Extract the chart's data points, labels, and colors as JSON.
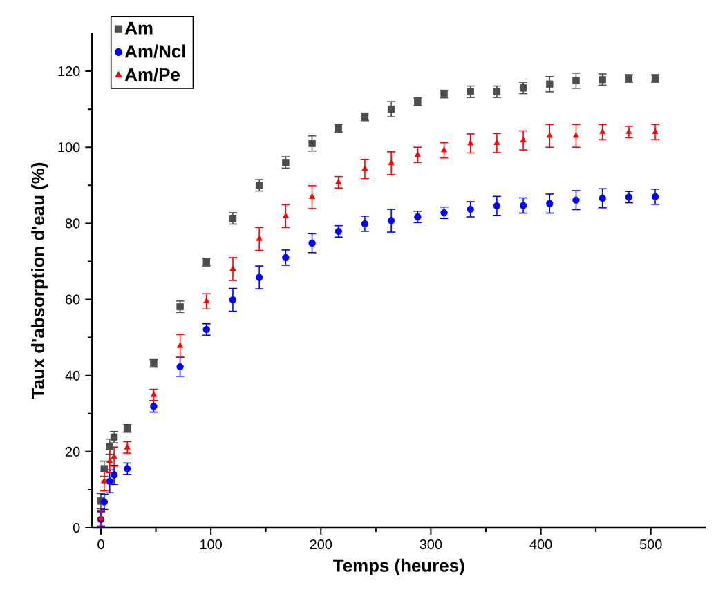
{
  "chart_data": {
    "type": "scatter",
    "xlabel": "Temps (heures)",
    "ylabel": "Taux d'absorption d'eau (%)",
    "xlim": [
      -8,
      550
    ],
    "ylim": [
      0,
      130
    ],
    "xticks": [
      0,
      100,
      200,
      300,
      400,
      500
    ],
    "yticks": [
      0,
      20,
      40,
      60,
      80,
      100,
      120
    ],
    "legend": "top left",
    "grid": false,
    "x": [
      0,
      3,
      8,
      12,
      24,
      48,
      72,
      96,
      120,
      144,
      168,
      192,
      216,
      240,
      264,
      288,
      312,
      336,
      360,
      384,
      408,
      432,
      456,
      480,
      504
    ],
    "series": [
      {
        "name": "Am",
        "color": "#4d4d4d",
        "marker": "square",
        "values": [
          7.0,
          15.5,
          21.3,
          23.8,
          26.1,
          43.2,
          58.1,
          69.8,
          81.3,
          90,
          96,
          101,
          105,
          108,
          110,
          112,
          114,
          114.6,
          114.6,
          115.6,
          116.6,
          117.5,
          117.8,
          118.1,
          118.1
        ],
        "errors": [
          2,
          2,
          2,
          1.5,
          1,
          1,
          1.5,
          1,
          1.5,
          1.5,
          1.5,
          2,
          1,
          1,
          2,
          1,
          1,
          1.5,
          1.5,
          1.5,
          2,
          2,
          1.5,
          1,
          1
        ]
      },
      {
        "name": "Am/Ncl",
        "color": "#0000ff",
        "marker": "circle",
        "values": [
          2.2,
          6.8,
          12.2,
          13.9,
          15.5,
          31.9,
          42.3,
          52.1,
          59.9,
          65.8,
          71,
          74.8,
          77.9,
          79.9,
          80.7,
          81.7,
          82.8,
          83.7,
          84.6,
          84.7,
          85.2,
          86.1,
          86.6,
          86.9,
          87
        ],
        "errors": [
          2,
          2,
          3,
          2.5,
          1.5,
          1.5,
          2.5,
          1.5,
          3,
          3,
          2,
          2.5,
          1.5,
          2,
          3,
          1.5,
          1.5,
          2,
          2.5,
          2,
          2.5,
          2.5,
          2.5,
          1.5,
          2
        ]
      },
      {
        "name": "Am/Pe",
        "color": "#ff0000",
        "marker": "triangle",
        "values": [
          2.5,
          12.2,
          17.5,
          18.7,
          21.1,
          34.9,
          47.8,
          59.5,
          68,
          75.9,
          81.9,
          86.9,
          90.8,
          94.3,
          95.8,
          98,
          99.2,
          101,
          101.1,
          101.8,
          103,
          103,
          104,
          104,
          104
        ],
        "errors": [
          2,
          2.5,
          3,
          2.5,
          1.5,
          1.5,
          3,
          2,
          3,
          3,
          3,
          3,
          1.5,
          2.5,
          3,
          2,
          2,
          2.5,
          2.5,
          2.5,
          3,
          3,
          2,
          1.5,
          2
        ]
      }
    ]
  }
}
